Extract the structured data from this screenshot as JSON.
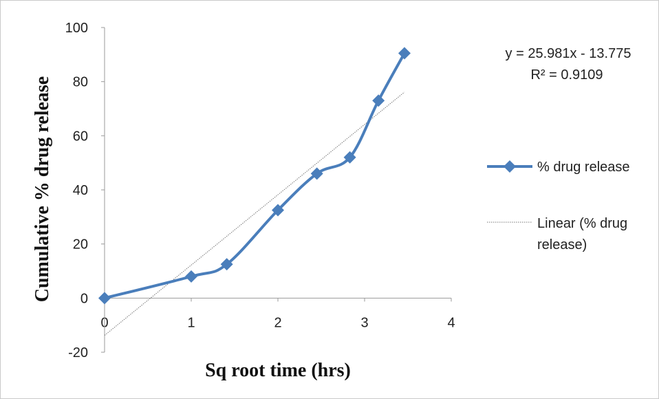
{
  "chart_data": {
    "type": "line",
    "xlabel": "Sq root time (hrs)",
    "ylabel": "Cumulative % drug release",
    "xlim": [
      0,
      4
    ],
    "ylim": [
      -20,
      100
    ],
    "xticks": [
      "0",
      "1",
      "2",
      "3",
      "4"
    ],
    "yticks": [
      "-20",
      "0",
      "20",
      "40",
      "60",
      "80",
      "100"
    ],
    "series": [
      {
        "name": "% drug release",
        "color": "#4a7ebb",
        "marker": "diamond",
        "x": [
          0,
          1,
          1.41,
          2,
          2.45,
          2.83,
          3.16,
          3.46
        ],
        "y": [
          0,
          8,
          12.5,
          32.5,
          46,
          52,
          73,
          90.5
        ]
      }
    ],
    "trendline": {
      "legend_label_line1": "Linear (% drug",
      "legend_label_line2": "release)",
      "slope": 25.981,
      "intercept": -13.775,
      "equation": "y = 25.981x - 13.775",
      "r_squared": "R² = 0.9109",
      "color": "#777777"
    },
    "legend_position": "right"
  }
}
